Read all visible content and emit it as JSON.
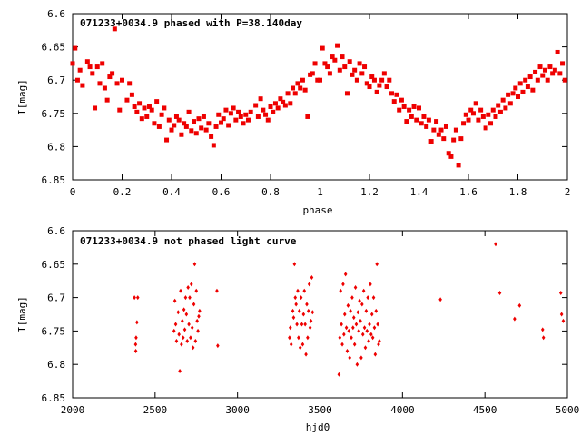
{
  "chart_data": [
    {
      "type": "scatter",
      "title": "071233+0034.9 phased with P=38.140day",
      "xlabel": "phase",
      "ylabel": "I[mag]",
      "xlim": [
        0,
        2
      ],
      "ylim": [
        6.6,
        6.85
      ],
      "y_inverted": true,
      "grid": false,
      "marker": "filled-square",
      "color": "#ee0000",
      "x_ticks": [
        "0",
        "0.2",
        "0.4",
        "0.6",
        "0.8",
        "1",
        "1.2",
        "1.4",
        "1.6",
        "1.8",
        "2"
      ],
      "y_ticks": [
        "6.6",
        "6.65",
        "6.7",
        "6.75",
        "6.8",
        "6.85"
      ],
      "points": [
        [
          0.0,
          6.675
        ],
        [
          0.01,
          6.652
        ],
        [
          0.02,
          6.7
        ],
        [
          0.03,
          6.685
        ],
        [
          0.04,
          6.708
        ],
        [
          0.06,
          6.672
        ],
        [
          0.07,
          6.68
        ],
        [
          0.08,
          6.69
        ],
        [
          0.09,
          6.742
        ],
        [
          0.1,
          6.68
        ],
        [
          0.11,
          6.705
        ],
        [
          0.12,
          6.675
        ],
        [
          0.13,
          6.712
        ],
        [
          0.14,
          6.73
        ],
        [
          0.15,
          6.695
        ],
        [
          0.16,
          6.69
        ],
        [
          0.17,
          6.623
        ],
        [
          0.18,
          6.705
        ],
        [
          0.19,
          6.745
        ],
        [
          0.2,
          6.7
        ],
        [
          0.22,
          6.73
        ],
        [
          0.23,
          6.705
        ],
        [
          0.24,
          6.722
        ],
        [
          0.25,
          6.74
        ],
        [
          0.26,
          6.748
        ],
        [
          0.27,
          6.735
        ],
        [
          0.28,
          6.758
        ],
        [
          0.29,
          6.742
        ],
        [
          0.3,
          6.755
        ],
        [
          0.31,
          6.74
        ],
        [
          0.32,
          6.745
        ],
        [
          0.33,
          6.765
        ],
        [
          0.34,
          6.732
        ],
        [
          0.35,
          6.77
        ],
        [
          0.36,
          6.752
        ],
        [
          0.37,
          6.742
        ],
        [
          0.38,
          6.79
        ],
        [
          0.39,
          6.76
        ],
        [
          0.4,
          6.775
        ],
        [
          0.41,
          6.768
        ],
        [
          0.42,
          6.755
        ],
        [
          0.43,
          6.76
        ],
        [
          0.44,
          6.782
        ],
        [
          0.45,
          6.765
        ],
        [
          0.46,
          6.77
        ],
        [
          0.47,
          6.748
        ],
        [
          0.48,
          6.776
        ],
        [
          0.49,
          6.762
        ],
        [
          0.5,
          6.78
        ],
        [
          0.51,
          6.758
        ],
        [
          0.52,
          6.772
        ],
        [
          0.53,
          6.755
        ],
        [
          0.54,
          6.775
        ],
        [
          0.55,
          6.765
        ],
        [
          0.56,
          6.785
        ],
        [
          0.57,
          6.798
        ],
        [
          0.58,
          6.77
        ],
        [
          0.59,
          6.752
        ],
        [
          0.6,
          6.764
        ],
        [
          0.61,
          6.758
        ],
        [
          0.62,
          6.745
        ],
        [
          0.63,
          6.768
        ],
        [
          0.64,
          6.75
        ],
        [
          0.65,
          6.742
        ],
        [
          0.66,
          6.76
        ],
        [
          0.67,
          6.748
        ],
        [
          0.68,
          6.755
        ],
        [
          0.69,
          6.765
        ],
        [
          0.7,
          6.752
        ],
        [
          0.71,
          6.76
        ],
        [
          0.72,
          6.748
        ],
        [
          0.74,
          6.738
        ],
        [
          0.75,
          6.755
        ],
        [
          0.76,
          6.728
        ],
        [
          0.77,
          6.745
        ],
        [
          0.78,
          6.752
        ],
        [
          0.79,
          6.76
        ],
        [
          0.8,
          6.74
        ],
        [
          0.81,
          6.748
        ],
        [
          0.82,
          6.735
        ],
        [
          0.83,
          6.742
        ],
        [
          0.84,
          6.728
        ],
        [
          0.85,
          6.733
        ],
        [
          0.86,
          6.738
        ],
        [
          0.87,
          6.72
        ],
        [
          0.88,
          6.735
        ],
        [
          0.89,
          6.712
        ],
        [
          0.9,
          6.72
        ],
        [
          0.91,
          6.705
        ],
        [
          0.92,
          6.712
        ],
        [
          0.93,
          6.7
        ],
        [
          0.94,
          6.715
        ],
        [
          0.95,
          6.755
        ],
        [
          0.96,
          6.692
        ],
        [
          0.97,
          6.69
        ],
        [
          0.98,
          6.675
        ],
        [
          0.99,
          6.7
        ],
        [
          1.0,
          6.7
        ],
        [
          1.01,
          6.652
        ],
        [
          1.02,
          6.675
        ],
        [
          1.03,
          6.68
        ],
        [
          1.04,
          6.69
        ],
        [
          1.05,
          6.665
        ],
        [
          1.06,
          6.67
        ],
        [
          1.07,
          6.648
        ],
        [
          1.08,
          6.685
        ],
        [
          1.09,
          6.665
        ],
        [
          1.1,
          6.68
        ],
        [
          1.11,
          6.72
        ],
        [
          1.12,
          6.672
        ],
        [
          1.13,
          6.692
        ],
        [
          1.14,
          6.685
        ],
        [
          1.15,
          6.7
        ],
        [
          1.16,
          6.675
        ],
        [
          1.17,
          6.69
        ],
        [
          1.18,
          6.68
        ],
        [
          1.19,
          6.705
        ],
        [
          1.2,
          6.71
        ],
        [
          1.21,
          6.695
        ],
        [
          1.22,
          6.7
        ],
        [
          1.23,
          6.718
        ],
        [
          1.24,
          6.708
        ],
        [
          1.25,
          6.7
        ],
        [
          1.26,
          6.69
        ],
        [
          1.27,
          6.71
        ],
        [
          1.28,
          6.7
        ],
        [
          1.29,
          6.72
        ],
        [
          1.3,
          6.732
        ],
        [
          1.31,
          6.722
        ],
        [
          1.32,
          6.745
        ],
        [
          1.33,
          6.73
        ],
        [
          1.34,
          6.74
        ],
        [
          1.35,
          6.762
        ],
        [
          1.36,
          6.745
        ],
        [
          1.37,
          6.755
        ],
        [
          1.38,
          6.74
        ],
        [
          1.39,
          6.76
        ],
        [
          1.4,
          6.742
        ],
        [
          1.41,
          6.765
        ],
        [
          1.42,
          6.755
        ],
        [
          1.43,
          6.77
        ],
        [
          1.44,
          6.76
        ],
        [
          1.45,
          6.792
        ],
        [
          1.46,
          6.775
        ],
        [
          1.47,
          6.762
        ],
        [
          1.48,
          6.782
        ],
        [
          1.49,
          6.775
        ],
        [
          1.5,
          6.788
        ],
        [
          1.51,
          6.77
        ],
        [
          1.52,
          6.81
        ],
        [
          1.53,
          6.815
        ],
        [
          1.54,
          6.79
        ],
        [
          1.55,
          6.775
        ],
        [
          1.56,
          6.828
        ],
        [
          1.57,
          6.788
        ],
        [
          1.58,
          6.765
        ],
        [
          1.59,
          6.752
        ],
        [
          1.6,
          6.76
        ],
        [
          1.61,
          6.745
        ],
        [
          1.62,
          6.75
        ],
        [
          1.63,
          6.735
        ],
        [
          1.64,
          6.76
        ],
        [
          1.65,
          6.745
        ],
        [
          1.66,
          6.755
        ],
        [
          1.67,
          6.772
        ],
        [
          1.68,
          6.752
        ],
        [
          1.69,
          6.765
        ],
        [
          1.7,
          6.745
        ],
        [
          1.71,
          6.755
        ],
        [
          1.72,
          6.738
        ],
        [
          1.73,
          6.748
        ],
        [
          1.74,
          6.73
        ],
        [
          1.75,
          6.742
        ],
        [
          1.76,
          6.722
        ],
        [
          1.77,
          6.735
        ],
        [
          1.78,
          6.72
        ],
        [
          1.79,
          6.712
        ],
        [
          1.8,
          6.725
        ],
        [
          1.81,
          6.705
        ],
        [
          1.82,
          6.718
        ],
        [
          1.83,
          6.7
        ],
        [
          1.84,
          6.71
        ],
        [
          1.85,
          6.695
        ],
        [
          1.86,
          6.715
        ],
        [
          1.87,
          6.688
        ],
        [
          1.88,
          6.7
        ],
        [
          1.89,
          6.68
        ],
        [
          1.9,
          6.693
        ],
        [
          1.91,
          6.685
        ],
        [
          1.92,
          6.7
        ],
        [
          1.93,
          6.68
        ],
        [
          1.94,
          6.69
        ],
        [
          1.95,
          6.685
        ],
        [
          1.96,
          6.658
        ],
        [
          1.97,
          6.69
        ],
        [
          1.98,
          6.675
        ],
        [
          1.99,
          6.7
        ]
      ]
    },
    {
      "type": "scatter",
      "title": "071233+0034.9 not phased light curve",
      "xlabel": "hjd0",
      "ylabel": "I[mag]",
      "xlim": [
        2000,
        5000
      ],
      "ylim": [
        6.6,
        6.85
      ],
      "y_inverted": true,
      "grid": false,
      "marker": "small-diamond",
      "color": "#ee0000",
      "x_ticks": [
        "2000",
        "2500",
        "3000",
        "3500",
        "4000",
        "4500",
        "5000"
      ],
      "y_ticks": [
        "6.6",
        "6.65",
        "6.7",
        "6.75",
        "6.8",
        "6.85"
      ],
      "points": [
        [
          2375,
          6.7
        ],
        [
          2382,
          6.77
        ],
        [
          2383,
          6.78
        ],
        [
          2385,
          6.76
        ],
        [
          2390,
          6.737
        ],
        [
          2395,
          6.7
        ],
        [
          2615,
          6.75
        ],
        [
          2620,
          6.705
        ],
        [
          2625,
          6.74
        ],
        [
          2630,
          6.765
        ],
        [
          2640,
          6.722
        ],
        [
          2645,
          6.755
        ],
        [
          2650,
          6.81
        ],
        [
          2655,
          6.69
        ],
        [
          2660,
          6.77
        ],
        [
          2665,
          6.735
        ],
        [
          2670,
          6.76
        ],
        [
          2675,
          6.718
        ],
        [
          2680,
          6.748
        ],
        [
          2685,
          6.7
        ],
        [
          2690,
          6.725
        ],
        [
          2695,
          6.765
        ],
        [
          2700,
          6.685
        ],
        [
          2705,
          6.74
        ],
        [
          2710,
          6.7
        ],
        [
          2715,
          6.76
        ],
        [
          2720,
          6.68
        ],
        [
          2725,
          6.745
        ],
        [
          2730,
          6.775
        ],
        [
          2735,
          6.71
        ],
        [
          2740,
          6.65
        ],
        [
          2745,
          6.765
        ],
        [
          2750,
          6.69
        ],
        [
          2755,
          6.735
        ],
        [
          2760,
          6.75
        ],
        [
          2765,
          6.728
        ],
        [
          2770,
          6.72
        ],
        [
          2875,
          6.69
        ],
        [
          2880,
          6.772
        ],
        [
          3315,
          6.76
        ],
        [
          3320,
          6.745
        ],
        [
          3325,
          6.77
        ],
        [
          3335,
          6.72
        ],
        [
          3340,
          6.73
        ],
        [
          3345,
          6.65
        ],
        [
          3350,
          6.7
        ],
        [
          3355,
          6.71
        ],
        [
          3360,
          6.74
        ],
        [
          3365,
          6.69
        ],
        [
          3370,
          6.76
        ],
        [
          3375,
          6.72
        ],
        [
          3380,
          6.775
        ],
        [
          3385,
          6.7
        ],
        [
          3390,
          6.74
        ],
        [
          3395,
          6.77
        ],
        [
          3400,
          6.725
        ],
        [
          3405,
          6.69
        ],
        [
          3410,
          6.74
        ],
        [
          3415,
          6.785
        ],
        [
          3420,
          6.71
        ],
        [
          3425,
          6.76
        ],
        [
          3430,
          6.72
        ],
        [
          3435,
          6.68
        ],
        [
          3440,
          6.745
        ],
        [
          3445,
          6.735
        ],
        [
          3450,
          6.67
        ],
        [
          3455,
          6.722
        ],
        [
          3615,
          6.815
        ],
        [
          3620,
          6.76
        ],
        [
          3625,
          6.69
        ],
        [
          3630,
          6.74
        ],
        [
          3635,
          6.77
        ],
        [
          3640,
          6.68
        ],
        [
          3645,
          6.755
        ],
        [
          3650,
          6.725
        ],
        [
          3655,
          6.665
        ],
        [
          3660,
          6.745
        ],
        [
          3665,
          6.78
        ],
        [
          3670,
          6.712
        ],
        [
          3675,
          6.75
        ],
        [
          3680,
          6.79
        ],
        [
          3685,
          6.72
        ],
        [
          3690,
          6.76
        ],
        [
          3695,
          6.7
        ],
        [
          3700,
          6.745
        ],
        [
          3705,
          6.73
        ],
        [
          3710,
          6.77
        ],
        [
          3715,
          6.685
        ],
        [
          3720,
          6.74
        ],
        [
          3725,
          6.8
        ],
        [
          3730,
          6.722
        ],
        [
          3735,
          6.75
        ],
        [
          3740,
          6.705
        ],
        [
          3745,
          6.735
        ],
        [
          3750,
          6.79
        ],
        [
          3755,
          6.71
        ],
        [
          3760,
          6.755
        ],
        [
          3765,
          6.69
        ],
        [
          3770,
          6.745
        ],
        [
          3775,
          6.775
        ],
        [
          3780,
          6.72
        ],
        [
          3785,
          6.75
        ],
        [
          3790,
          6.7
        ],
        [
          3795,
          6.765
        ],
        [
          3800,
          6.74
        ],
        [
          3805,
          6.68
        ],
        [
          3810,
          6.755
        ],
        [
          3815,
          6.725
        ],
        [
          3820,
          6.76
        ],
        [
          3825,
          6.7
        ],
        [
          3830,
          6.745
        ],
        [
          3835,
          6.785
        ],
        [
          3840,
          6.72
        ],
        [
          3845,
          6.65
        ],
        [
          3850,
          6.74
        ],
        [
          3855,
          6.77
        ],
        [
          3860,
          6.765
        ],
        [
          4230,
          6.703
        ],
        [
          4565,
          6.62
        ],
        [
          4590,
          6.693
        ],
        [
          4680,
          6.732
        ],
        [
          4710,
          6.712
        ],
        [
          4850,
          6.748
        ],
        [
          4855,
          6.76
        ],
        [
          4960,
          6.693
        ],
        [
          4965,
          6.725
        ],
        [
          4975,
          6.735
        ]
      ]
    }
  ]
}
